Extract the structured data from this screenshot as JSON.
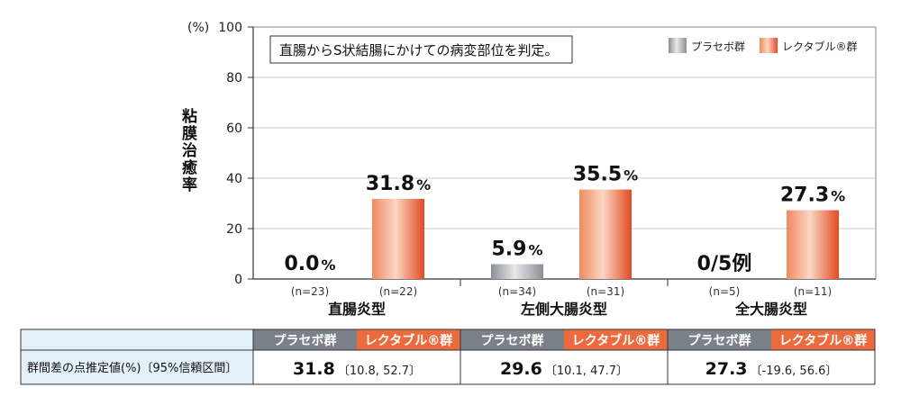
{
  "chart_data": {
    "type": "bar",
    "y_unit": "(%)",
    "ylabel": "粘膜治癒率",
    "ylim": [
      0,
      100
    ],
    "yticks": [
      0,
      20,
      40,
      60,
      80,
      100
    ],
    "note": "直腸からS状結腸にかけての病変部位を判定。",
    "legend_position": "top-right",
    "series": [
      {
        "name": "プラセボ群",
        "color": "#a3a9ae"
      },
      {
        "name": "レクタブル®群",
        "color": "#e8582e"
      }
    ],
    "categories": [
      {
        "name": "直腸炎型",
        "bars": [
          {
            "value": 0.0,
            "label": "0.0",
            "unit": "%",
            "n": "(n=23)"
          },
          {
            "value": 31.8,
            "label": "31.8",
            "unit": "%",
            "n": "(n=22)"
          }
        ]
      },
      {
        "name": "左側大腸炎型",
        "bars": [
          {
            "value": 5.9,
            "label": "5.9",
            "unit": "%",
            "n": "(n=34)"
          },
          {
            "value": 35.5,
            "label": "35.5",
            "unit": "%",
            "n": "(n=31)"
          }
        ]
      },
      {
        "name": "全大腸炎型",
        "bars": [
          {
            "value": 0,
            "label": "0/5例",
            "unit": "",
            "n": "(n=5)"
          },
          {
            "value": 27.3,
            "label": "27.3",
            "unit": "%",
            "n": "(n=11)"
          }
        ]
      }
    ]
  },
  "table": {
    "row_label": "群間差の点推定値(%)〔95%信頼区間〕",
    "header_placebo": "プラセボ群",
    "header_rectabul": "レクタブル®群",
    "header_placebo_color": "#7a8189",
    "header_rectabul_color": "#ec6b3e",
    "rows": [
      {
        "estimate": "31.8",
        "ci": "〔10.8, 52.7〕"
      },
      {
        "estimate": "29.6",
        "ci": "〔10.1, 47.7〕"
      },
      {
        "estimate": "27.3",
        "ci": "〔-19.6, 56.6〕"
      }
    ]
  }
}
